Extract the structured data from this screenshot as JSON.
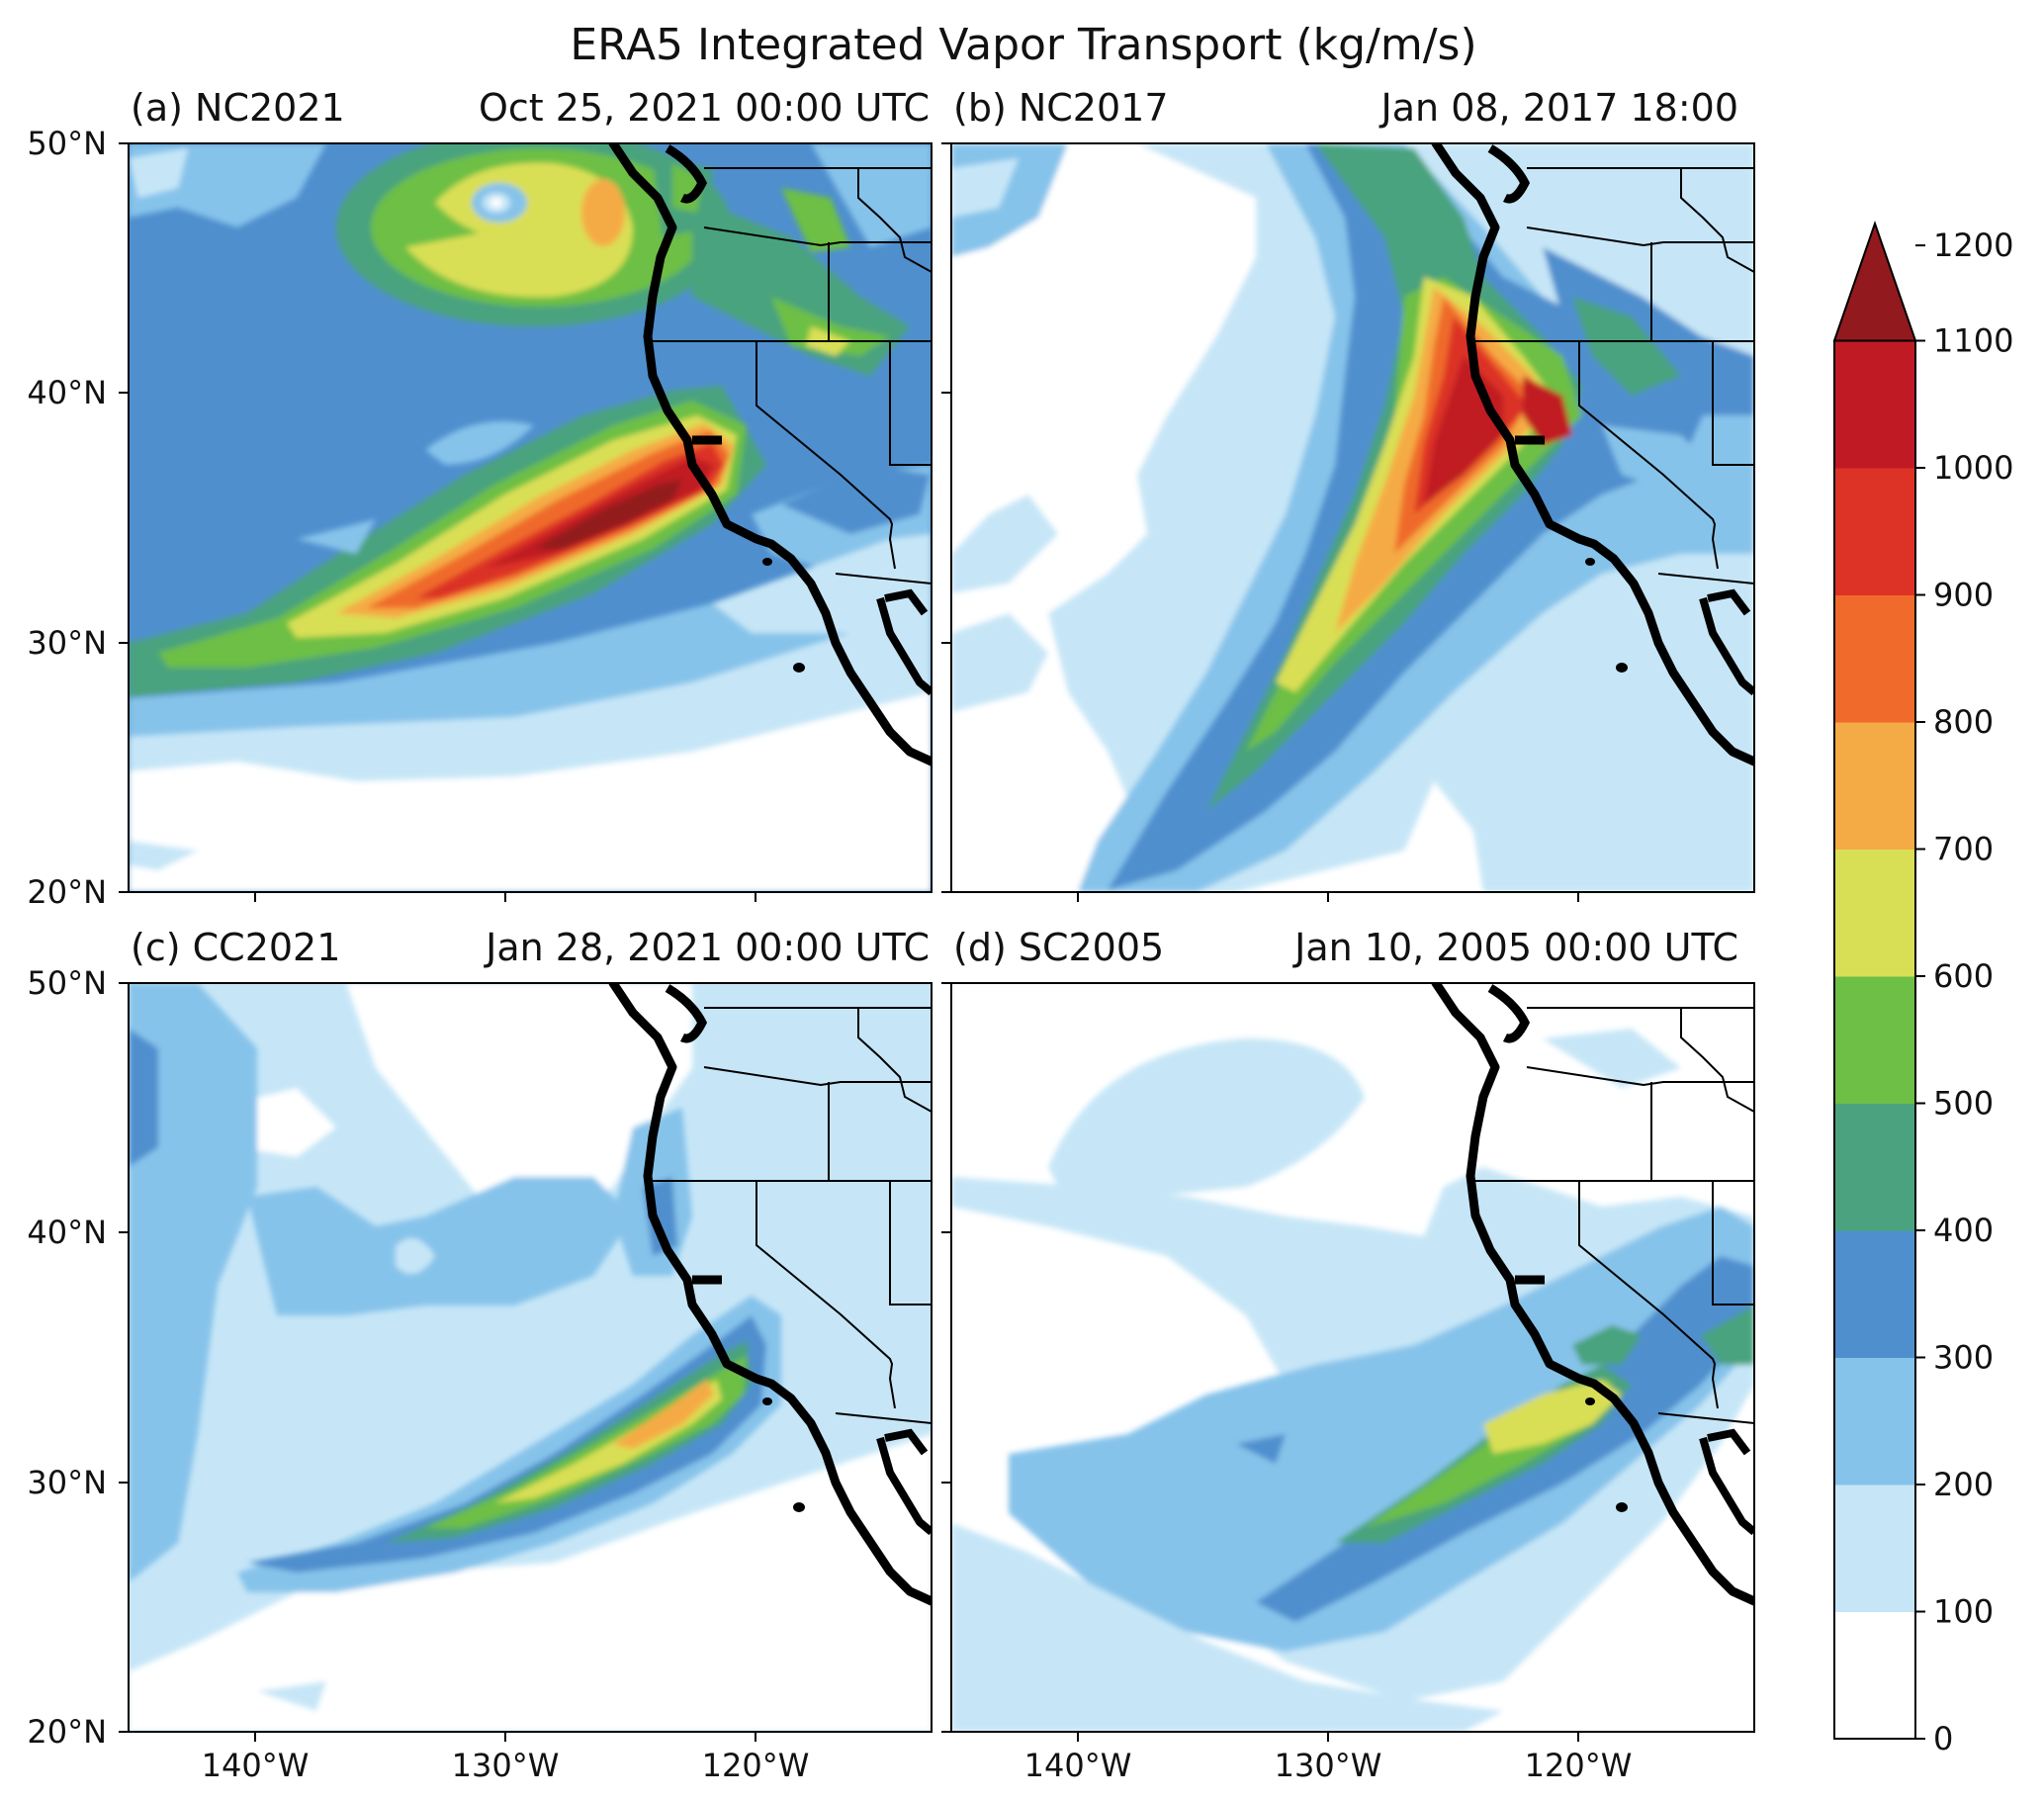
{
  "figure": {
    "title": "ERA5 Integrated Vapor Transport (kg/m/s)"
  },
  "axes": {
    "lat_ticks": [
      "50°N",
      "40°N",
      "30°N",
      "20°N"
    ],
    "lon_ticks": [
      "140°W",
      "130°W",
      "120°W"
    ]
  },
  "panels": [
    {
      "id": "a",
      "label": "(a) NC2021",
      "date": "Oct 25, 2021 00:00 UTC"
    },
    {
      "id": "b",
      "label": "(b) NC2017",
      "date": "Jan 08, 2017 18:00"
    },
    {
      "id": "c",
      "label": "(c) CC2021",
      "date": "Jan 28, 2021 00:00 UTC"
    },
    {
      "id": "d",
      "label": "(d) SC2005",
      "date": "Jan 10, 2005 00:00 UTC"
    }
  ],
  "colorbar": {
    "levels": [
      "0",
      "100",
      "200",
      "300",
      "400",
      "500",
      "600",
      "700",
      "800",
      "900",
      "1000",
      "1100",
      "1200"
    ],
    "colors": [
      "#ffffff",
      "#c6e6f7",
      "#86c3ea",
      "#4f8fce",
      "#4aa37e",
      "#6dbf45",
      "#d9df55",
      "#f5ab45",
      "#ef6a2b",
      "#dc3326",
      "#c01b24",
      "#921a1e",
      "#921a1e"
    ]
  }
}
